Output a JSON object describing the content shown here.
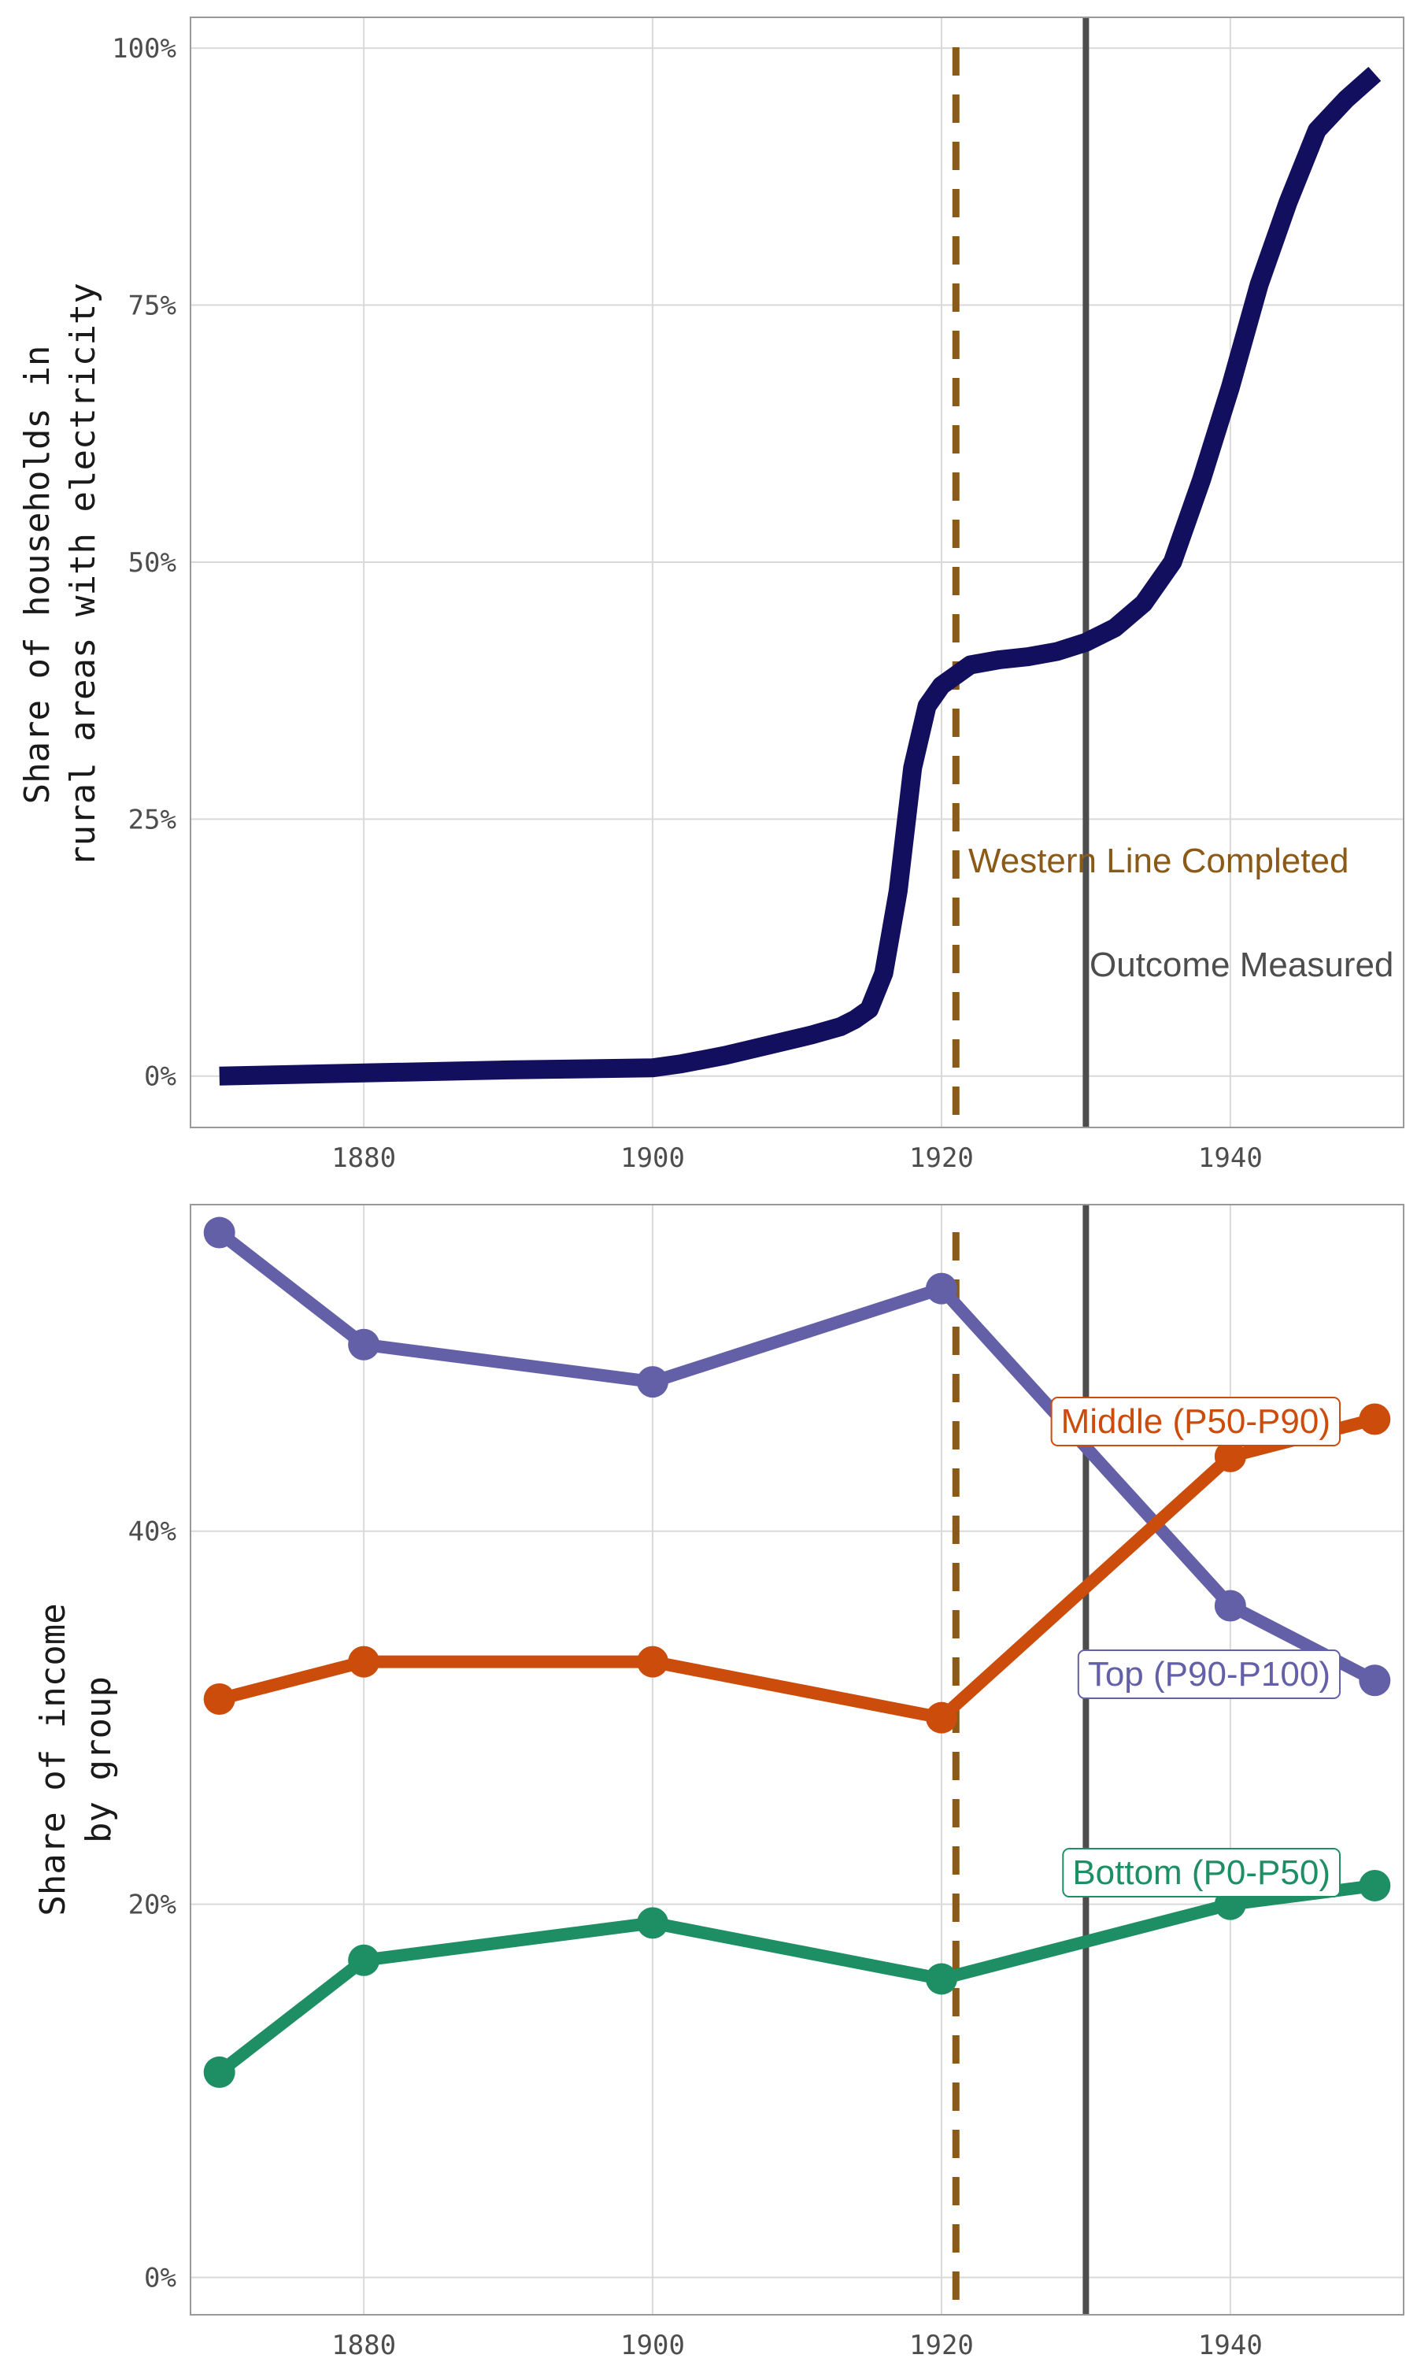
{
  "chart_data": [
    {
      "type": "line",
      "title": "",
      "xlabel": "",
      "ylabel_lines": [
        "Share of households in",
        "rural areas with electricity"
      ],
      "xlim": [
        1868,
        1952
      ],
      "ylim": [
        -0.05,
        1.03
      ],
      "x_ticks": [
        1880,
        1900,
        1920,
        1940
      ],
      "x_tick_labels": [
        "1880",
        "1900",
        "1920",
        "1940"
      ],
      "y_ticks": [
        0,
        0.25,
        0.5,
        0.75,
        1.0
      ],
      "y_tick_labels": [
        "0%",
        "25%",
        "50%",
        "75%",
        "100%"
      ],
      "grid": true,
      "series": [
        {
          "color": "#120f5e",
          "x": [
            1870,
            1880,
            1890,
            1900,
            1902,
            1905,
            1908,
            1911,
            1913,
            1914,
            1915,
            1916,
            1917,
            1918,
            1919,
            1920,
            1921,
            1922,
            1924,
            1926,
            1928,
            1930,
            1932,
            1934,
            1935,
            1936,
            1938,
            1940,
            1942,
            1944,
            1946,
            1948,
            1950
          ],
          "y": [
            0,
            0.003,
            0.006,
            0.008,
            0.012,
            0.02,
            0.03,
            0.04,
            0.048,
            0.055,
            0.065,
            0.1,
            0.18,
            0.3,
            0.36,
            0.38,
            0.39,
            0.4,
            0.405,
            0.408,
            0.413,
            0.422,
            0.436,
            0.46,
            0.48,
            0.5,
            0.58,
            0.67,
            0.77,
            0.85,
            0.92,
            0.95,
            0.975
          ]
        }
      ],
      "vlines": [
        {
          "x": 1921,
          "style": "dashed",
          "color": "#8b5a16",
          "label": "Western Line Completed"
        },
        {
          "x": 1930,
          "style": "solid",
          "color": "#4d4d4d",
          "label": "Outcome Measured"
        }
      ]
    },
    {
      "type": "line",
      "title": "",
      "xlabel": "",
      "ylabel_lines": [
        "Share of income",
        "by group"
      ],
      "xlim": [
        1868,
        1952
      ],
      "ylim": [
        -0.02,
        0.575
      ],
      "x_ticks": [
        1880,
        1900,
        1920,
        1940
      ],
      "x_tick_labels": [
        "1880",
        "1900",
        "1920",
        "1940"
      ],
      "y_ticks": [
        0,
        0.2,
        0.4
      ],
      "y_tick_labels": [
        "0%",
        "20%",
        "40%"
      ],
      "grid": true,
      "series": [
        {
          "name": "Top (P90-P100)",
          "color": "#6460a8",
          "x": [
            1870,
            1880,
            1900,
            1920,
            1940,
            1950
          ],
          "y": [
            0.56,
            0.5,
            0.48,
            0.53,
            0.36,
            0.32
          ]
        },
        {
          "name": "Middle (P50-P90)",
          "color": "#cc4c0c",
          "x": [
            1870,
            1880,
            1900,
            1920,
            1940,
            1950
          ],
          "y": [
            0.31,
            0.33,
            0.33,
            0.3,
            0.44,
            0.46
          ]
        },
        {
          "name": "Bottom (P0-P50)",
          "color": "#1e8e64",
          "x": [
            1870,
            1880,
            1900,
            1920,
            1940,
            1950
          ],
          "y": [
            0.11,
            0.17,
            0.19,
            0.16,
            0.2,
            0.21
          ]
        }
      ],
      "vlines": [
        {
          "x": 1921,
          "style": "dashed",
          "color": "#8b5a16"
        },
        {
          "x": 1930,
          "style": "solid",
          "color": "#4d4d4d"
        }
      ]
    }
  ]
}
